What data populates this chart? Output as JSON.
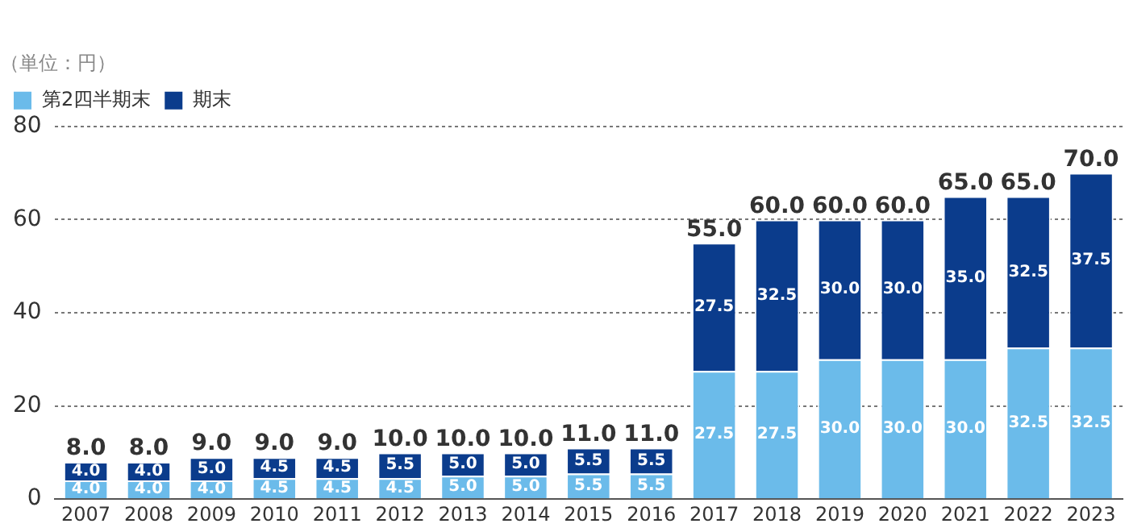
{
  "chart_data": {
    "type": "bar",
    "stacked": true,
    "ylabel": "（単位：円）",
    "categories": [
      "2007",
      "2008",
      "2009",
      "2010",
      "2011",
      "2012",
      "2013",
      "2014",
      "2015",
      "2016",
      "2017",
      "2018",
      "2019",
      "2020",
      "2021",
      "2022",
      "2023"
    ],
    "series": [
      {
        "name": "第2四半期末",
        "color": "#6bbbea",
        "values": [
          4.0,
          4.0,
          4.0,
          4.5,
          4.5,
          4.5,
          5.0,
          5.0,
          5.5,
          5.5,
          27.5,
          27.5,
          30.0,
          30.0,
          30.0,
          32.5,
          32.5
        ],
        "value_labels": [
          "4.0",
          "4.0",
          "4.0",
          "4.5",
          "4.5",
          "4.5",
          "5.0",
          "5.0",
          "5.5",
          "5.5",
          "27.5",
          "27.5",
          "30.0",
          "30.0",
          "30.0",
          "32.5",
          "32.5"
        ]
      },
      {
        "name": "期末",
        "color": "#0b3c8c",
        "values": [
          4.0,
          4.0,
          5.0,
          4.5,
          4.5,
          5.5,
          5.0,
          5.0,
          5.5,
          5.5,
          27.5,
          32.5,
          30.0,
          30.0,
          35.0,
          32.5,
          37.5
        ],
        "value_labels": [
          "4.0",
          "4.0",
          "5.0",
          "4.5",
          "4.5",
          "5.5",
          "5.0",
          "5.0",
          "5.5",
          "5.5",
          "27.5",
          "32.5",
          "30.0",
          "30.0",
          "35.0",
          "32.5",
          "37.5"
        ]
      }
    ],
    "totals": [
      "8.0",
      "8.0",
      "9.0",
      "9.0",
      "9.0",
      "10.0",
      "10.0",
      "10.0",
      "11.0",
      "11.0",
      "55.0",
      "60.0",
      "60.0",
      "60.0",
      "65.0",
      "65.0",
      "70.0"
    ],
    "ylim": [
      0,
      80
    ],
    "yticks": [
      0,
      20,
      40,
      60,
      80
    ],
    "grid": "y",
    "legend": "top left"
  }
}
